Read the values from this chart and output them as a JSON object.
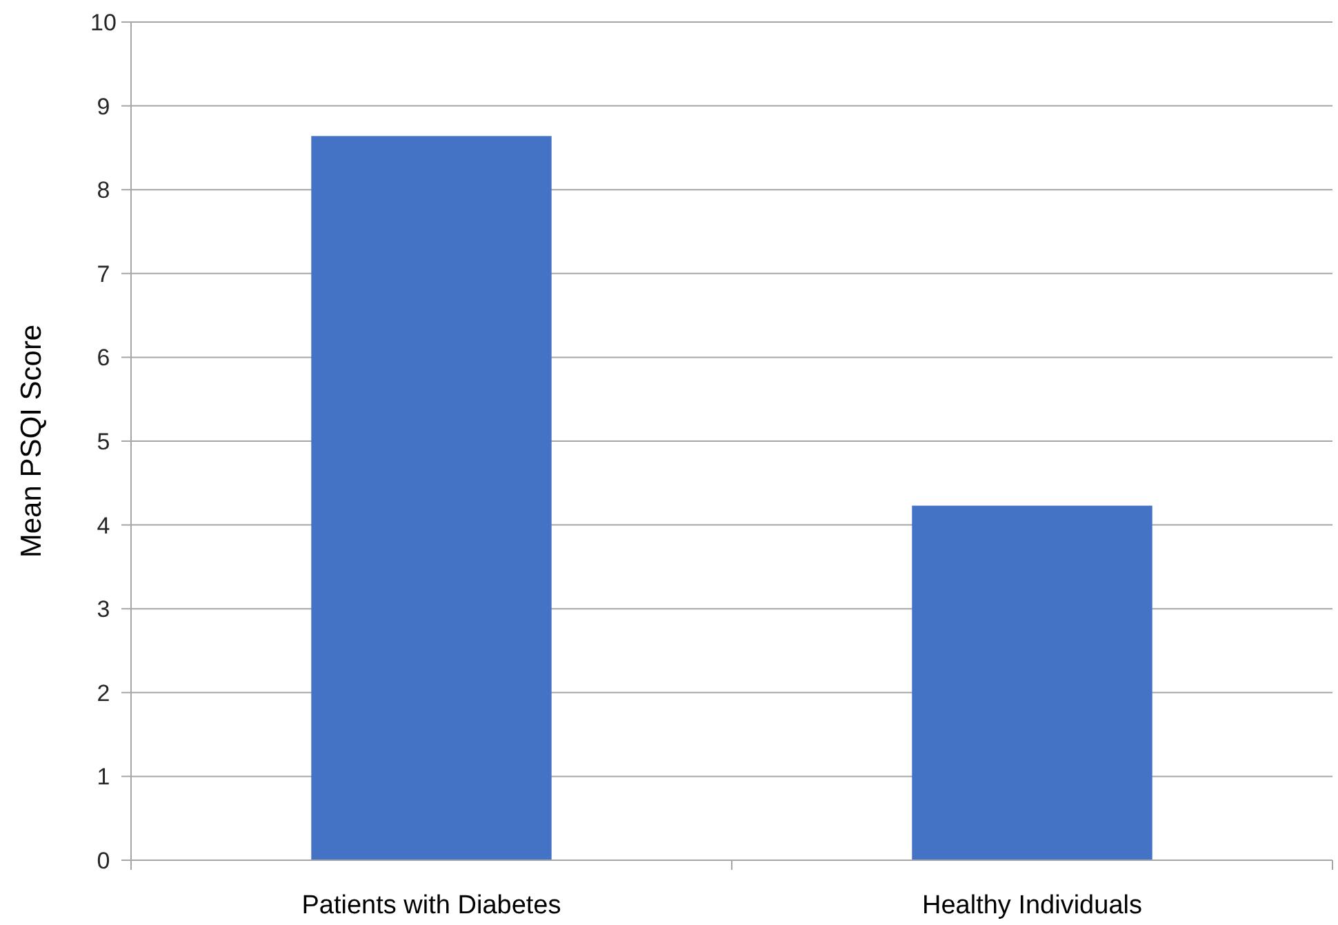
{
  "chart_data": {
    "type": "bar",
    "categories": [
      "Patients with Diabetes",
      "Healthy Individuals"
    ],
    "values": [
      8.64,
      4.23
    ],
    "color": "#4472c4",
    "ylabel": "Mean PSQI Score",
    "ylim": [
      0,
      10
    ],
    "yticks": [
      0,
      1,
      2,
      3,
      4,
      5,
      6,
      7,
      8,
      9,
      10
    ],
    "grid": "y"
  }
}
